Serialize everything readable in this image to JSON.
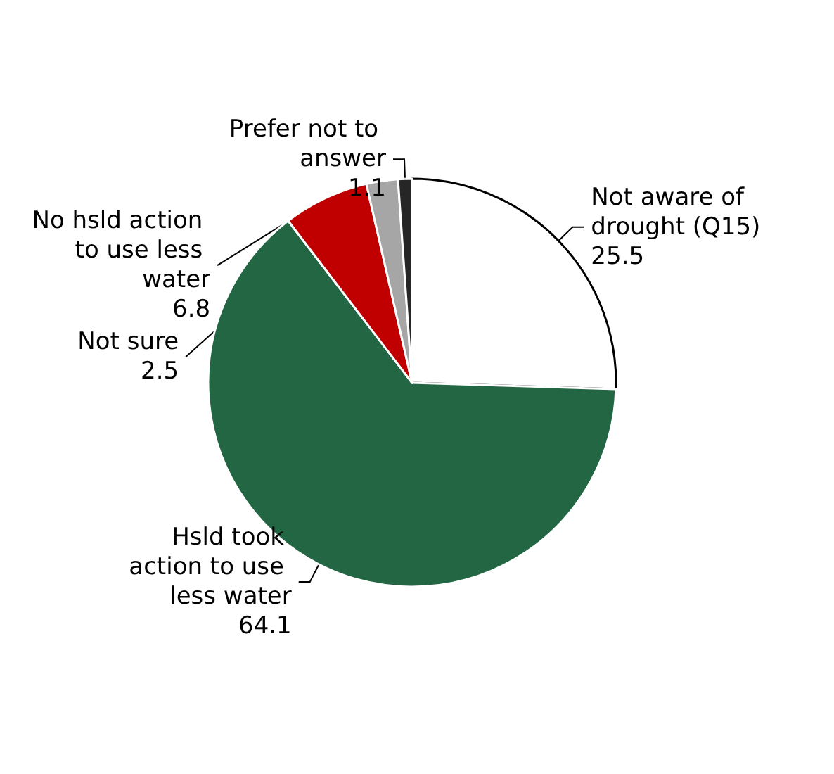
{
  "chart_data": {
    "type": "pie",
    "categories": [
      "Not aware of drought (Q15)",
      "Hsld took action to use less water",
      "No hsld action to use less water",
      "Not sure",
      "Prefer not to answer"
    ],
    "values": [
      25.5,
      64.1,
      6.8,
      2.5,
      1.1
    ],
    "colors": [
      "#ffffff",
      "#226644",
      "#c00000",
      "#a6a6a6",
      "#262626"
    ],
    "data_labels": true
  }
}
